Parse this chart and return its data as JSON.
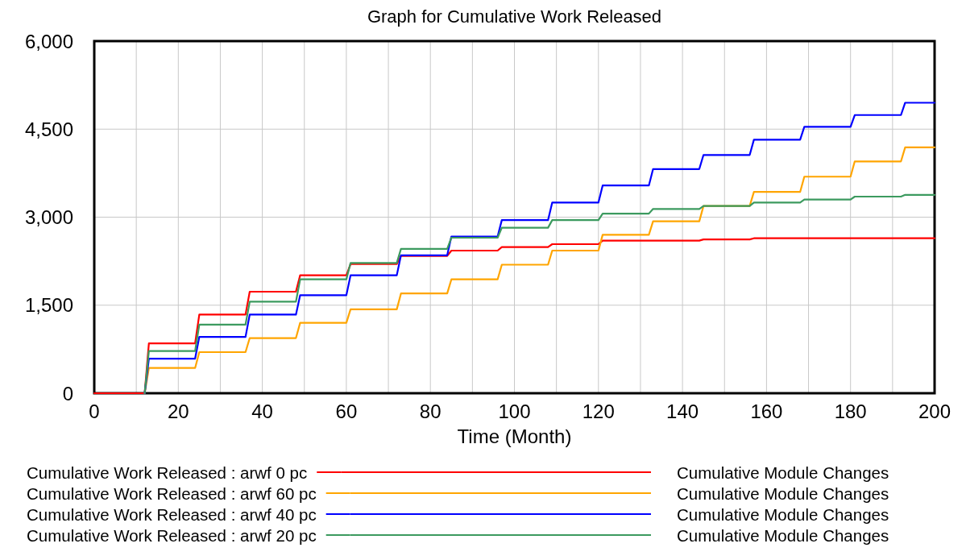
{
  "chart_data": {
    "type": "line",
    "title": "Graph for Cumulative Work Released",
    "xlabel": "Time (Month)",
    "x": [
      0,
      12,
      13,
      24,
      25,
      36,
      37,
      48,
      49,
      60,
      61,
      72,
      73,
      84,
      85,
      96,
      97,
      108,
      109,
      120,
      121,
      132,
      133,
      144,
      145,
      156,
      157,
      168,
      169,
      180,
      181,
      192,
      193,
      200
    ],
    "series": [
      {
        "name": "Cumulative Work Released : arwf 0 pc",
        "color": "#ff0000",
        "values": [
          0,
          0,
          850,
          850,
          1340,
          1340,
          1730,
          1730,
          2010,
          2010,
          2200,
          2200,
          2340,
          2340,
          2430,
          2430,
          2490,
          2490,
          2540,
          2540,
          2600,
          2600,
          2600,
          2600,
          2620,
          2620,
          2640,
          2640,
          2640,
          2640,
          2640,
          2640,
          2640,
          2640
        ]
      },
      {
        "name": "Cumulative Work Released : arwf 60 pc",
        "color": "#ffa500",
        "values": [
          null,
          0,
          430,
          430,
          700,
          700,
          940,
          940,
          1200,
          1200,
          1430,
          1430,
          1700,
          1700,
          1940,
          1940,
          2190,
          2190,
          2430,
          2430,
          2700,
          2700,
          2930,
          2930,
          3190,
          3190,
          3430,
          3430,
          3690,
          3690,
          3950,
          3950,
          4190,
          4190
        ]
      },
      {
        "name": "Cumulative Work Released : arwf 40 pc",
        "color": "#0000ff",
        "values": [
          null,
          0,
          590,
          590,
          960,
          960,
          1340,
          1340,
          1670,
          1670,
          2010,
          2010,
          2350,
          2350,
          2670,
          2670,
          2950,
          2950,
          3250,
          3250,
          3540,
          3540,
          3820,
          3820,
          4060,
          4060,
          4320,
          4320,
          4540,
          4540,
          4740,
          4740,
          4950,
          4950
        ]
      },
      {
        "name": "Cumulative Work Released : arwf 20 pc",
        "color": "#3c9a5f",
        "values": [
          null,
          0,
          720,
          720,
          1170,
          1170,
          1560,
          1560,
          1940,
          1940,
          2220,
          2220,
          2460,
          2460,
          2650,
          2650,
          2820,
          2820,
          2950,
          2950,
          3060,
          3060,
          3140,
          3140,
          3190,
          3190,
          3250,
          3250,
          3300,
          3300,
          3350,
          3350,
          3380,
          3380
        ]
      }
    ],
    "annotations": [
      "Cumulative Module Changes",
      "Cumulative Module Changes",
      "Cumulative Module Changes",
      "Cumulative Module Changes"
    ],
    "xlim": [
      0,
      200
    ],
    "xticks": [
      0,
      {
        "value": 10,
        "label": null
      },
      20,
      {
        "value": 30,
        "label": null
      },
      40,
      {
        "value": 50,
        "label": null
      },
      60,
      {
        "value": 70,
        "label": null
      },
      80,
      {
        "value": 90,
        "label": null
      },
      100,
      {
        "value": 110,
        "label": null
      },
      120,
      {
        "value": 130,
        "label": null
      },
      140,
      {
        "value": 150,
        "label": null
      },
      160,
      {
        "value": 170,
        "label": null
      },
      180,
      {
        "value": 190,
        "label": null
      },
      200
    ],
    "ylim": [
      0,
      6000
    ],
    "yticks": [
      0,
      {
        "value": 1500,
        "label": "1,500"
      },
      {
        "value": 3000,
        "label": "3,000"
      },
      {
        "value": 4500,
        "label": "4,500"
      },
      {
        "value": 6000,
        "label": "6,000"
      }
    ],
    "grid": true,
    "legend": "bottom",
    "line_style": "solid",
    "marker": "none"
  }
}
